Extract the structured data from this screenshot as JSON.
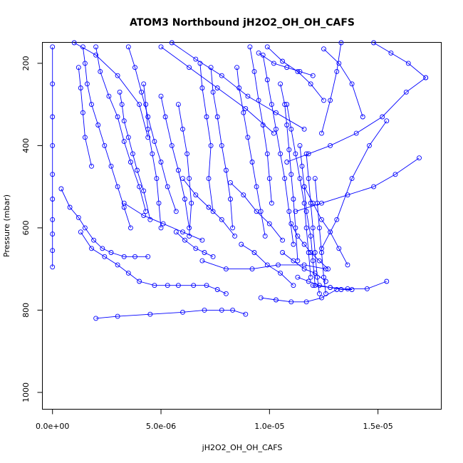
{
  "chart_data": {
    "type": "line",
    "title": "ATOM3 Northbound jH2O2_OH_OH_CAFS",
    "xlabel": "jH2O2_OH_OH_CAFS",
    "ylabel": "Pressure (mbar)",
    "xlim": [
      -4.5e-07,
      1.79e-05
    ],
    "ylim": [
      1040,
      150
    ],
    "y_reversed": true,
    "grid": false,
    "x_ticks": [
      0,
      5e-06,
      1e-05,
      1.5e-05
    ],
    "x_tick_labels": [
      "0.0e+00",
      "5.0e-06",
      "1.0e-05",
      "1.5e-05"
    ],
    "y_ticks": [
      200,
      400,
      600,
      800,
      1000
    ],
    "y_tick_labels": [
      "200",
      "400",
      "600",
      "800",
      "1000"
    ],
    "series_color": "#0000ff",
    "series": [
      {
        "x": [
          0,
          0,
          0,
          0,
          0,
          0,
          0,
          0,
          0,
          0
        ],
        "y": [
          160,
          250,
          330,
          400,
          470,
          530,
          580,
          615,
          655,
          695
        ]
      },
      {
        "x": [
          4e-07,
          8e-07,
          1.2e-06,
          1.5e-06,
          1.9e-06,
          2.3e-06,
          2.7e-06,
          3.3e-06,
          3.8e-06,
          4.4e-06
        ],
        "y": [
          505,
          550,
          575,
          600,
          630,
          650,
          660,
          670,
          670,
          670
        ]
      },
      {
        "x": [
          1.3e-06,
          1.8e-06,
          2.4e-06,
          3e-06,
          3.5e-06,
          4e-06,
          4.7e-06,
          5.3e-06,
          5.8e-06,
          6.5e-06,
          7.1e-06,
          7.6e-06,
          8e-06
        ],
        "y": [
          610,
          650,
          670,
          690,
          710,
          730,
          740,
          740,
          740,
          740,
          740,
          750,
          760
        ]
      },
      {
        "x": [
          2e-06,
          3e-06,
          4.5e-06,
          6e-06,
          7e-06,
          7.8e-06,
          8.3e-06,
          8.9e-06
        ],
        "y": [
          820,
          815,
          810,
          805,
          800,
          800,
          800,
          810
        ]
      },
      {
        "x": [
          1.4e-06,
          1.5e-06,
          1.6e-06,
          1.8e-06,
          2.1e-06,
          2.4e-06,
          2.7e-06,
          3e-06,
          3.3e-06,
          3.6e-06
        ],
        "y": [
          160,
          200,
          250,
          300,
          350,
          400,
          450,
          500,
          550,
          600
        ]
      },
      {
        "x": [
          1.2e-06,
          1.3e-06,
          1.4e-06,
          1.5e-06,
          1.8e-06
        ],
        "y": [
          210,
          260,
          320,
          380,
          450
        ]
      },
      {
        "x": [
          2e-06,
          2.2e-06,
          2.6e-06,
          3e-06,
          3.3e-06,
          3.6e-06,
          4e-06,
          4.3e-06
        ],
        "y": [
          160,
          220,
          280,
          330,
          390,
          440,
          500,
          560
        ]
      },
      {
        "x": [
          3.1e-06,
          3.2e-06,
          3.3e-06,
          3.5e-06,
          3.7e-06,
          3.9e-06,
          4.2e-06,
          4.5e-06
        ],
        "y": [
          270,
          300,
          340,
          380,
          420,
          460,
          510,
          580
        ]
      },
      {
        "x": [
          3.5e-06,
          3.8e-06,
          4.1e-06,
          4.4e-06,
          4.7e-06,
          5e-06,
          5.3e-06,
          5.7e-06
        ],
        "y": [
          160,
          210,
          270,
          330,
          390,
          440,
          500,
          560
        ]
      },
      {
        "x": [
          4.2e-06,
          4.3e-06,
          4.4e-06,
          4.6e-06,
          4.8e-06,
          4.9e-06,
          5e-06
        ],
        "y": [
          250,
          300,
          360,
          420,
          480,
          540,
          600
        ]
      },
      {
        "x": [
          5e-06,
          5.2e-06,
          5.5e-06,
          5.8e-06,
          6.1e-06,
          6.3e-06
        ],
        "y": [
          280,
          330,
          400,
          460,
          530,
          600
        ]
      },
      {
        "x": [
          5.8e-06,
          6e-06,
          6.2e-06,
          6.3e-06,
          6.4e-06,
          6.3e-06
        ],
        "y": [
          300,
          360,
          420,
          480,
          540,
          620
        ]
      },
      {
        "x": [
          6.8e-06,
          6.9e-06,
          7.1e-06,
          7.3e-06,
          7.2e-06,
          7.4e-06
        ],
        "y": [
          200,
          260,
          330,
          400,
          480,
          560
        ]
      },
      {
        "x": [
          7.3e-06,
          7.4e-06,
          7.6e-06,
          7.8e-06,
          8e-06,
          8.2e-06,
          8.3e-06
        ],
        "y": [
          210,
          270,
          330,
          400,
          460,
          530,
          600
        ]
      },
      {
        "x": [
          8.5e-06,
          8.6e-06,
          8.8e-06,
          9e-06,
          9.2e-06,
          9.4e-06,
          9.6e-06,
          9.8e-06
        ],
        "y": [
          210,
          260,
          320,
          380,
          440,
          500,
          560,
          620
        ]
      },
      {
        "x": [
          9.1e-06,
          9.3e-06,
          9.5e-06,
          9.7e-06,
          9.9e-06,
          1e-05,
          1.01e-05
        ],
        "y": [
          160,
          220,
          290,
          350,
          420,
          480,
          540
        ]
      },
      {
        "x": [
          9.7e-06,
          9.9e-06,
          1.01e-05,
          1.03e-05,
          1.05e-05,
          1.07e-05,
          1.09e-05,
          1.11e-05
        ],
        "y": [
          180,
          240,
          300,
          360,
          420,
          480,
          560,
          640
        ]
      },
      {
        "x": [
          1.05e-05,
          1.07e-05,
          1.08e-05,
          1.09e-05,
          1.1e-05,
          1.11e-05,
          1.12e-05,
          1.13e-05
        ],
        "y": [
          250,
          300,
          350,
          410,
          470,
          530,
          600,
          680
        ]
      },
      {
        "x": [
          1.08e-05,
          1.1e-05,
          1.12e-05,
          1.14e-05,
          1.16e-05,
          1.17e-05,
          1.18e-05,
          1.19e-05
        ],
        "y": [
          300,
          360,
          420,
          480,
          540,
          600,
          660,
          720
        ]
      },
      {
        "x": [
          1.14e-05,
          1.15e-05,
          1.16e-05,
          1.17e-05,
          1.19e-05,
          1.2e-05,
          1.21e-05
        ],
        "y": [
          400,
          450,
          500,
          560,
          620,
          680,
          740
        ]
      },
      {
        "x": [
          1.17e-05,
          1.18e-05,
          1.19e-05,
          1.2e-05,
          1.21e-05,
          1.22e-05,
          1.23e-05
        ],
        "y": [
          420,
          480,
          540,
          600,
          660,
          720,
          760
        ]
      },
      {
        "x": [
          1.21e-05,
          1.22e-05,
          1.23e-05,
          1.24e-05,
          1.25e-05,
          1.26e-05
        ],
        "y": [
          480,
          540,
          600,
          660,
          720,
          760
        ]
      },
      {
        "x": [
          9.6e-06,
          1.03e-05,
          1.1e-05,
          1.17e-05,
          1.24e-05,
          1.31e-05
        ],
        "y": [
          770,
          775,
          780,
          780,
          770,
          750
        ]
      },
      {
        "x": [
          1.13e-05,
          1.18e-05,
          1.23e-05,
          1.28e-05,
          1.33e-05,
          1.38e-05
        ],
        "y": [
          720,
          730,
          740,
          745,
          750,
          750
        ]
      },
      {
        "x": [
          1.2e-05,
          1.28e-05,
          1.36e-05,
          1.45e-05,
          1.54e-05
        ],
        "y": [
          740,
          745,
          748,
          748,
          730
        ]
      },
      {
        "x": [
          6.9e-06,
          8e-06,
          9.2e-06,
          1.04e-05,
          1.16e-05,
          1.26e-05
        ],
        "y": [
          680,
          700,
          700,
          690,
          690,
          700
        ]
      },
      {
        "x": [
          1.24e-05,
          1.31e-05,
          1.38e-05,
          1.46e-05,
          1.54e-05
        ],
        "y": [
          650,
          580,
          480,
          400,
          340
        ]
      },
      {
        "x": [
          1.08e-05,
          1.18e-05,
          1.28e-05,
          1.4e-05,
          1.52e-05,
          1.63e-05,
          1.72e-05
        ],
        "y": [
          440,
          420,
          400,
          370,
          330,
          270,
          235
        ]
      },
      {
        "x": [
          1.12e-05,
          1.24e-05,
          1.36e-05,
          1.48e-05,
          1.58e-05,
          1.69e-05
        ],
        "y": [
          560,
          540,
          520,
          500,
          470,
          430
        ]
      },
      {
        "x": [
          1.24e-05,
          1.28e-05,
          1.31e-05,
          1.33e-05
        ],
        "y": [
          370,
          290,
          220,
          150
        ]
      },
      {
        "x": [
          1.25e-05,
          1.32e-05,
          1.38e-05,
          1.43e-05
        ],
        "y": [
          165,
          200,
          250,
          330
        ]
      },
      {
        "x": [
          9.5e-06,
          1.02e-05,
          1.08e-05,
          1.14e-05,
          1.2e-05
        ],
        "y": [
          175,
          200,
          210,
          220,
          230
        ]
      },
      {
        "x": [
          9.9e-06,
          1.06e-05,
          1.13e-05,
          1.19e-05,
          1.25e-05
        ],
        "y": [
          160,
          195,
          220,
          250,
          290
        ]
      },
      {
        "x": [
          1.48e-05,
          1.56e-05,
          1.64e-05,
          1.72e-05
        ],
        "y": [
          150,
          175,
          200,
          235
        ]
      },
      {
        "x": [
          1e-06,
          2e-06,
          3e-06,
          4e-06,
          4.4e-06
        ],
        "y": [
          150,
          180,
          230,
          300,
          380
        ]
      },
      {
        "x": [
          5e-06,
          6.3e-06,
          7.6e-06,
          8.9e-06,
          1.02e-05
        ],
        "y": [
          160,
          210,
          260,
          310,
          370
        ]
      },
      {
        "x": [
          5.5e-06,
          6.6e-06,
          7.8e-06,
          9e-06,
          1.03e-05,
          1.16e-05
        ],
        "y": [
          150,
          190,
          230,
          280,
          320,
          360
        ]
      },
      {
        "x": [
          6e-06,
          6.6e-06,
          7.2e-06,
          7.8e-06,
          8.4e-06
        ],
        "y": [
          480,
          520,
          550,
          580,
          620
        ]
      },
      {
        "x": [
          3.3e-06,
          4.2e-06,
          5.1e-06,
          6e-06,
          6.9e-06
        ],
        "y": [
          540,
          570,
          590,
          610,
          630
        ]
      },
      {
        "x": [
          8.2e-06,
          8.8e-06,
          9.4e-06,
          1e-05,
          1.06e-05
        ],
        "y": [
          490,
          520,
          560,
          590,
          630
        ]
      },
      {
        "x": [
          8.7e-06,
          9.3e-06,
          9.9e-06,
          1.05e-05,
          1.11e-05
        ],
        "y": [
          640,
          660,
          690,
          710,
          740
        ]
      },
      {
        "x": [
          1.06e-05,
          1.11e-05,
          1.16e-05,
          1.21e-05,
          1.26e-05
        ],
        "y": [
          660,
          680,
          700,
          710,
          730
        ]
      },
      {
        "x": [
          5.7e-06,
          6.1e-06,
          6.6e-06,
          7e-06,
          7.4e-06
        ],
        "y": [
          610,
          630,
          650,
          660,
          670
        ]
      },
      {
        "x": [
          1.1e-05,
          1.13e-05,
          1.16e-05,
          1.19e-05,
          1.23e-05,
          1.27e-05
        ],
        "y": [
          590,
          620,
          640,
          660,
          680,
          700
        ]
      },
      {
        "x": [
          1.16e-05,
          1.2e-05,
          1.24e-05,
          1.28e-05,
          1.32e-05,
          1.36e-05
        ],
        "y": [
          500,
          540,
          580,
          610,
          650,
          690
        ]
      }
    ]
  }
}
